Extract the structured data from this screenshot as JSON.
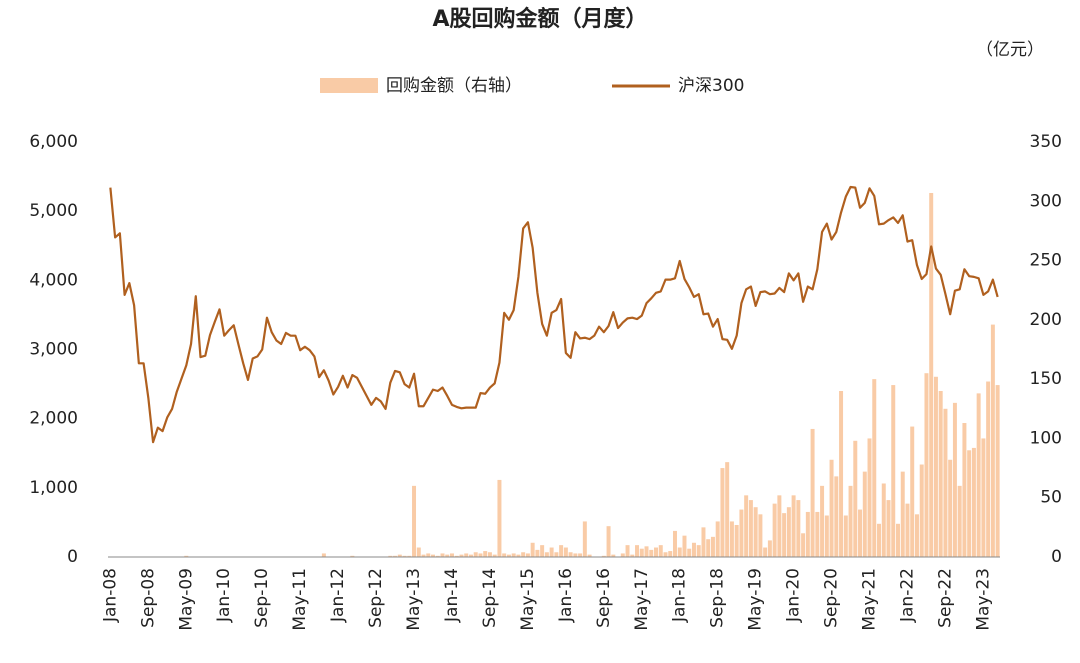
{
  "chart_data": {
    "type": "bar_line",
    "title": "A股回购金额（月度）",
    "y2_label": "（亿元）",
    "categories": [
      "Jan-08",
      null,
      null,
      null,
      null,
      null,
      null,
      null,
      "Sep-08",
      null,
      null,
      null,
      null,
      null,
      null,
      null,
      "May-09",
      null,
      null,
      null,
      null,
      null,
      null,
      null,
      "Jan-10",
      null,
      null,
      null,
      null,
      null,
      null,
      null,
      "Sep-10",
      null,
      null,
      null,
      null,
      null,
      null,
      null,
      "May-11",
      null,
      null,
      null,
      null,
      null,
      null,
      null,
      "Jan-12",
      null,
      null,
      null,
      null,
      null,
      null,
      null,
      "Sep-12",
      null,
      null,
      null,
      null,
      null,
      null,
      null,
      "May-13",
      null,
      null,
      null,
      null,
      null,
      null,
      null,
      "Jan-14",
      null,
      null,
      null,
      null,
      null,
      null,
      null,
      "Sep-14",
      null,
      null,
      null,
      null,
      null,
      null,
      null,
      "May-15",
      null,
      null,
      null,
      null,
      null,
      null,
      null,
      "Jan-16",
      null,
      null,
      null,
      null,
      null,
      null,
      null,
      "Sep-16",
      null,
      null,
      null,
      null,
      null,
      null,
      null,
      "May-17",
      null,
      null,
      null,
      null,
      null,
      null,
      null,
      "Jan-18",
      null,
      null,
      null,
      null,
      null,
      null,
      null,
      "Sep-18",
      null,
      null,
      null,
      null,
      null,
      null,
      null,
      "May-19",
      null,
      null,
      null,
      null,
      null,
      null,
      null,
      "Jan-20",
      null,
      null,
      null,
      null,
      null,
      null,
      null,
      "Sep-20",
      null,
      null,
      null,
      null,
      null,
      null,
      null,
      "May-21",
      null,
      null,
      null,
      null,
      null,
      null,
      null,
      "Jan-22",
      null,
      null,
      null,
      null,
      null,
      null,
      null,
      "Sep-22",
      null,
      null,
      null,
      null,
      null,
      null,
      null,
      "May-23",
      null,
      null,
      null
    ],
    "series": [
      {
        "name": "回购金额（右轴）",
        "kind": "bar",
        "axis": "y2",
        "color": "#f9cba6",
        "values": [
          0,
          0,
          0,
          0,
          0,
          0,
          0,
          0,
          0,
          0,
          0,
          0,
          0,
          0,
          0,
          0,
          1,
          0,
          0,
          0,
          0,
          0,
          0,
          0,
          0,
          0,
          0,
          0,
          0,
          0,
          0,
          0,
          0,
          0,
          0,
          0,
          0,
          0,
          0,
          0,
          0,
          0,
          0,
          0,
          0,
          3,
          0,
          0,
          0,
          0,
          0,
          1,
          0,
          0,
          0,
          0,
          0,
          0,
          0,
          1,
          1,
          2,
          1,
          1,
          60,
          8,
          2,
          3,
          2,
          1,
          3,
          2,
          3,
          1,
          2,
          3,
          2,
          4,
          3,
          5,
          4,
          2,
          65,
          3,
          2,
          3,
          2,
          4,
          3,
          12,
          6,
          10,
          4,
          8,
          4,
          10,
          8,
          4,
          3,
          3,
          30,
          2,
          0,
          0,
          1,
          26,
          2,
          0,
          3,
          10,
          2,
          10,
          7,
          9,
          6,
          8,
          10,
          4,
          5,
          22,
          8,
          18,
          7,
          12,
          10,
          25,
          15,
          17,
          30,
          75,
          80,
          30,
          27,
          40,
          52,
          48,
          42,
          36,
          8,
          14,
          45,
          52,
          37,
          42,
          52,
          48,
          20,
          38,
          108,
          38,
          60,
          35,
          82,
          68,
          140,
          35,
          60,
          98,
          40,
          72,
          100,
          150,
          28,
          62,
          48,
          145,
          28,
          72,
          45,
          110,
          36,
          78,
          155,
          307,
          152,
          140,
          125,
          82,
          130,
          60,
          113,
          90,
          92,
          138,
          100,
          148,
          196,
          145
        ]
      },
      {
        "name": "沪深300",
        "kind": "line",
        "color": "#b0601f",
        "values": [
          5340,
          4620,
          4680,
          3790,
          3960,
          3640,
          2800,
          2800,
          2300,
          1660,
          1870,
          1820,
          2020,
          2140,
          2390,
          2580,
          2770,
          3080,
          3770,
          2890,
          2910,
          3210,
          3400,
          3580,
          3200,
          3280,
          3350,
          3070,
          2800,
          2560,
          2870,
          2900,
          3000,
          3460,
          3250,
          3130,
          3080,
          3240,
          3200,
          3200,
          2990,
          3040,
          2990,
          2900,
          2600,
          2700,
          2550,
          2350,
          2460,
          2620,
          2450,
          2630,
          2590,
          2460,
          2330,
          2200,
          2300,
          2250,
          2140,
          2520,
          2690,
          2670,
          2500,
          2450,
          2650,
          2180,
          2180,
          2300,
          2420,
          2400,
          2450,
          2330,
          2200,
          2170,
          2150,
          2160,
          2160,
          2160,
          2370,
          2360,
          2450,
          2510,
          2810,
          3530,
          3430,
          3570,
          4050,
          4750,
          4840,
          4470,
          3820,
          3370,
          3200,
          3530,
          3570,
          3730,
          2950,
          2880,
          3250,
          3160,
          3170,
          3150,
          3200,
          3330,
          3250,
          3340,
          3540,
          3310,
          3390,
          3450,
          3460,
          3440,
          3490,
          3670,
          3740,
          3820,
          3840,
          4010,
          4010,
          4030,
          4280,
          4020,
          3900,
          3760,
          3800,
          3510,
          3520,
          3330,
          3440,
          3150,
          3140,
          3010,
          3200,
          3670,
          3870,
          3910,
          3630,
          3830,
          3840,
          3800,
          3810,
          3890,
          3830,
          4100,
          4000,
          4100,
          3690,
          3910,
          3870,
          4160,
          4700,
          4820,
          4590,
          4700,
          4980,
          5210,
          5350,
          5340,
          5050,
          5120,
          5330,
          5220,
          4810,
          4820,
          4870,
          4910,
          4830,
          4940,
          4560,
          4580,
          4220,
          4020,
          4090,
          4490,
          4170,
          4080,
          3800,
          3510,
          3850,
          3870,
          4160,
          4060,
          4050,
          4030,
          3790,
          3840,
          4010,
          3760
        ]
      }
    ],
    "ylim": [
      0,
      6000
    ],
    "yticks": [
      0,
      {
        "value": 1000,
        "label": "1,000"
      },
      {
        "value": 2000,
        "label": "2,000"
      },
      {
        "value": 3000,
        "label": "3,000"
      },
      {
        "value": 4000,
        "label": "4,000"
      },
      {
        "value": 5000,
        "label": "5,000"
      },
      {
        "value": 6000,
        "label": "6,000"
      }
    ],
    "y2lim": [
      0,
      350
    ],
    "y2ticks": [
      0,
      50,
      100,
      150,
      200,
      250,
      300,
      350
    ],
    "grid": false
  }
}
